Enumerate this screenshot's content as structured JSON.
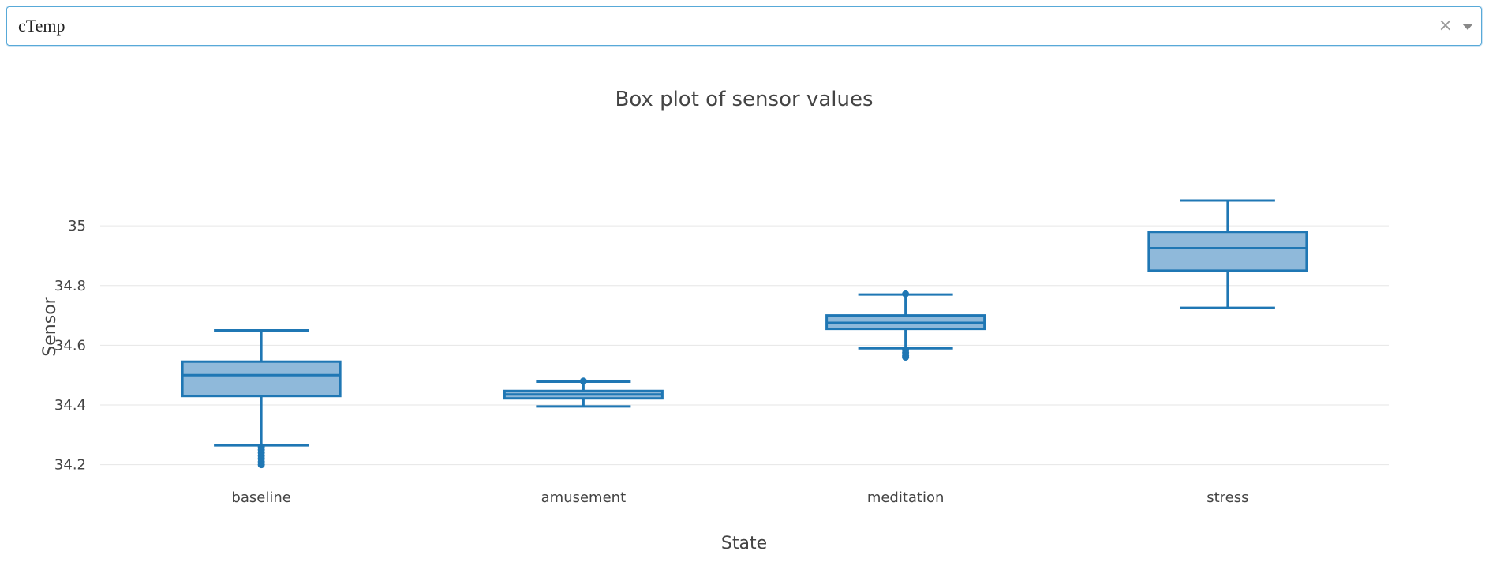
{
  "dropdown": {
    "selected": "cTemp",
    "clear_glyph": "×"
  },
  "chart_data": {
    "type": "box",
    "title": "Box plot of sensor values",
    "xlabel": "State",
    "ylabel": "Sensor",
    "categories": [
      "baseline",
      "amusement",
      "meditation",
      "stress"
    ],
    "ylim": [
      34.17,
      35.175
    ],
    "yticks": [
      34.2,
      34.4,
      34.6,
      34.8,
      35
    ],
    "ytick_labels": [
      "34.2",
      "34.4",
      "34.6",
      "34.8",
      "35"
    ],
    "grid": true,
    "colors": {
      "line": "#1f77b4",
      "fill": "#8fb9da",
      "grid": "#e6e6e6"
    },
    "boxes": [
      {
        "category": "baseline",
        "lowerfence": 34.265,
        "q1": 34.43,
        "median": 34.5,
        "q3": 34.545,
        "upperfence": 34.65,
        "outliers": [
          34.26,
          34.25,
          34.24,
          34.23,
          34.22,
          34.21,
          34.2
        ]
      },
      {
        "category": "amusement",
        "lowerfence": 34.395,
        "q1": 34.422,
        "median": 34.435,
        "q3": 34.447,
        "upperfence": 34.478,
        "outliers": [
          34.48
        ]
      },
      {
        "category": "meditation",
        "lowerfence": 34.59,
        "q1": 34.655,
        "median": 34.675,
        "q3": 34.7,
        "upperfence": 34.77,
        "outliers": [
          34.772,
          34.585,
          34.575,
          34.565,
          34.56
        ]
      },
      {
        "category": "stress",
        "lowerfence": 34.725,
        "q1": 34.85,
        "median": 34.925,
        "q3": 34.98,
        "upperfence": 35.085,
        "outliers": []
      }
    ]
  }
}
